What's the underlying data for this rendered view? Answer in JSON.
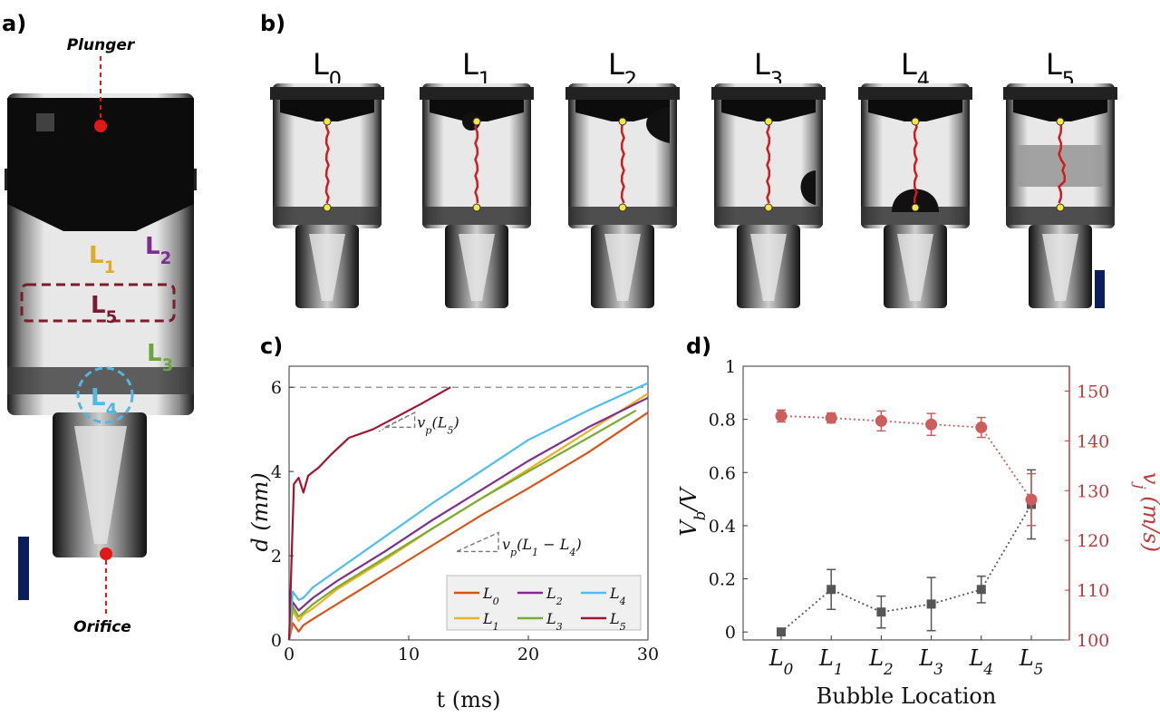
{
  "panels": {
    "a": {
      "letter": "a)",
      "plunger": "Plunger",
      "orifice": "Orifice",
      "bubble_labels": [
        {
          "main": "L",
          "sub": "1",
          "color": "#e0a92a"
        },
        {
          "main": "L",
          "sub": "2",
          "color": "#7b2e8e"
        },
        {
          "main": "L",
          "sub": "5",
          "color": "#7a1c2e"
        },
        {
          "main": "L",
          "sub": "3",
          "color": "#6aa63a"
        },
        {
          "main": "L",
          "sub": "4",
          "color": "#55b6e0"
        }
      ]
    },
    "b": {
      "letter": "b)",
      "frames": [
        {
          "main": "L",
          "sub": "0"
        },
        {
          "main": "L",
          "sub": "1"
        },
        {
          "main": "L",
          "sub": "2"
        },
        {
          "main": "L",
          "sub": "3"
        },
        {
          "main": "L",
          "sub": "4"
        },
        {
          "main": "L",
          "sub": "5"
        }
      ]
    },
    "c": {
      "letter": "c)"
    },
    "d": {
      "letter": "d)"
    }
  },
  "chart_data": [
    {
      "type": "line",
      "panel": "c",
      "xlabel_main": "t",
      "xlabel_unit": "(ms)",
      "ylabel_main": "d",
      "ylabel_unit": "(mm)",
      "xlim": [
        0,
        30
      ],
      "ylim": [
        0,
        6.5
      ],
      "xticks": [
        "0",
        "10",
        "20",
        "30"
      ],
      "yticks": [
        "0",
        "2",
        "4",
        "6"
      ],
      "reference_line_y": 6,
      "annotations": [
        {
          "text": "v",
          "sub": "p",
          "rest": "(L",
          "rsub": "5",
          "end": ")"
        },
        {
          "text": "v",
          "sub": "p",
          "rest": "(L",
          "rsub": "1",
          "mid": " − L",
          "msub": "4",
          "end": ")"
        }
      ],
      "legend_position": "bottom-right",
      "series": [
        {
          "name": "L",
          "sub": "0",
          "color": "#d95319",
          "x": [
            0,
            0.3,
            0.8,
            1.2,
            2,
            4,
            8,
            12,
            16,
            20,
            25,
            30
          ],
          "y": [
            0,
            0.4,
            0.2,
            0.35,
            0.5,
            0.85,
            1.55,
            2.25,
            2.95,
            3.6,
            4.45,
            5.4
          ]
        },
        {
          "name": "L",
          "sub": "1",
          "color": "#edb120",
          "x": [
            0,
            0.3,
            0.8,
            1.2,
            2,
            4,
            8,
            12,
            16,
            20,
            25,
            30
          ],
          "y": [
            0,
            0.7,
            0.45,
            0.6,
            0.75,
            1.2,
            1.9,
            2.65,
            3.35,
            4.05,
            4.95,
            5.85
          ]
        },
        {
          "name": "L",
          "sub": "2",
          "color": "#7e2f8e",
          "x": [
            0,
            0.3,
            0.8,
            1.2,
            2,
            4,
            8,
            12,
            16,
            20,
            25,
            30
          ],
          "y": [
            0,
            0.9,
            0.7,
            0.8,
            1.0,
            1.4,
            2.1,
            2.85,
            3.55,
            4.25,
            5.05,
            5.75
          ]
        },
        {
          "name": "L",
          "sub": "3",
          "color": "#77ac30",
          "x": [
            0,
            0.3,
            0.8,
            1.2,
            2,
            4,
            8,
            12,
            16,
            20,
            25,
            29
          ],
          "y": [
            0,
            0.8,
            0.55,
            0.65,
            0.85,
            1.25,
            1.95,
            2.65,
            3.35,
            4.0,
            4.8,
            5.45
          ]
        },
        {
          "name": "L",
          "sub": "4",
          "color": "#4dbeee",
          "x": [
            0,
            0.3,
            0.8,
            1.2,
            2,
            4,
            8,
            12,
            16,
            20,
            25,
            30
          ],
          "y": [
            0,
            1.15,
            0.95,
            1.0,
            1.25,
            1.65,
            2.45,
            3.25,
            4.0,
            4.75,
            5.45,
            6.1
          ]
        },
        {
          "name": "L",
          "sub": "5",
          "color": "#a2142f",
          "x": [
            0,
            0.4,
            0.8,
            1.2,
            1.6,
            2.5,
            3.5,
            5,
            7,
            9,
            11,
            13.5
          ],
          "y": [
            0,
            3.7,
            3.85,
            3.5,
            3.9,
            4.1,
            4.4,
            4.8,
            5.0,
            5.3,
            5.6,
            6.0
          ]
        }
      ]
    },
    {
      "type": "scatter",
      "panel": "d",
      "xlabel": "Bubble Location",
      "ylabel_left_main": "V",
      "ylabel_left_sub": "b",
      "ylabel_left_rest": "/V",
      "ylabel_right_main": "v",
      "ylabel_right_sub": "j",
      "ylabel_right_unit": "(m/s)",
      "categories": [
        {
          "main": "L",
          "sub": "0"
        },
        {
          "main": "L",
          "sub": "1"
        },
        {
          "main": "L",
          "sub": "2"
        },
        {
          "main": "L",
          "sub": "3"
        },
        {
          "main": "L",
          "sub": "4"
        },
        {
          "main": "L",
          "sub": "5"
        }
      ],
      "ylim_left": [
        -0.03,
        1
      ],
      "yticks_left": [
        "0",
        "0.2",
        "0.4",
        "0.6",
        "0.8",
        "1"
      ],
      "ylim_right": [
        100,
        155
      ],
      "yticks_right": [
        "100",
        "110",
        "120",
        "130",
        "140",
        "150"
      ],
      "series": [
        {
          "axis": "left",
          "color": "#555555",
          "values": [
            0.0,
            0.16,
            0.075,
            0.105,
            0.16,
            0.48
          ],
          "errors": [
            0.0,
            0.075,
            0.06,
            0.1,
            0.05,
            0.13
          ]
        },
        {
          "axis": "right",
          "color": "#cd5c5c",
          "values": [
            145,
            144.6,
            144,
            143.3,
            142.7,
            128.2
          ],
          "errors": [
            1.2,
            1.0,
            2.0,
            2.2,
            2.0,
            5.2
          ]
        }
      ]
    }
  ]
}
